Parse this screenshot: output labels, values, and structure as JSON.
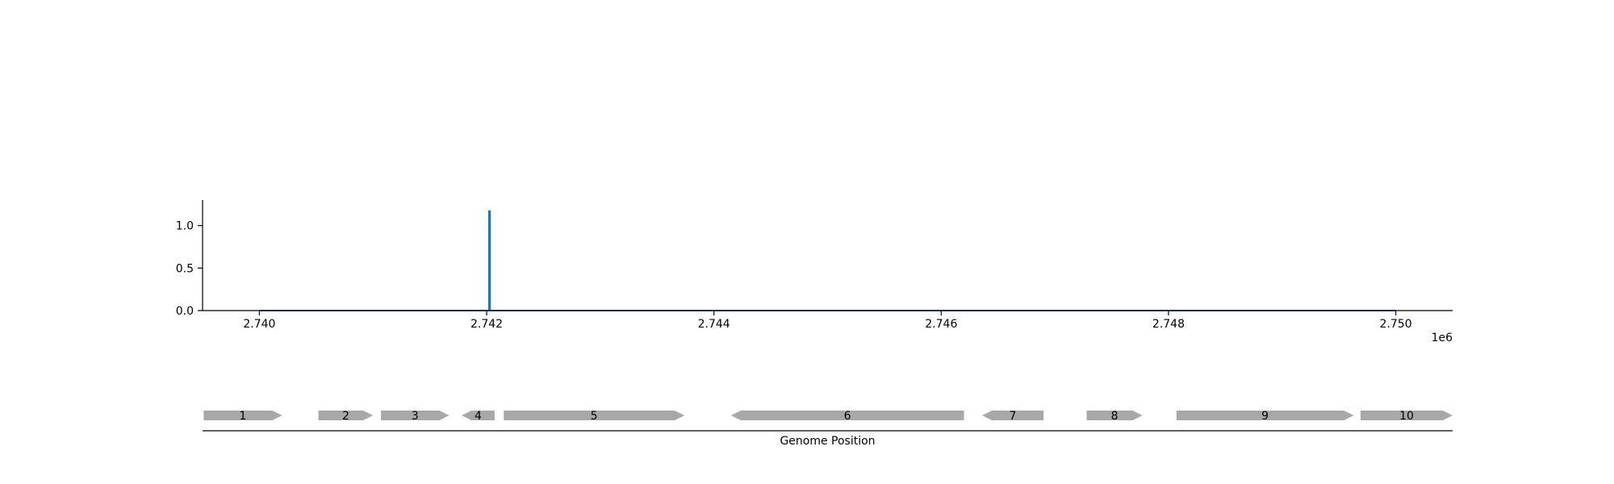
{
  "chart_data": [
    {
      "type": "line",
      "title": "",
      "xlabel": "",
      "ylabel": "",
      "x_offset_label": "1e6",
      "xlim": [
        2.7395,
        2.7505
      ],
      "ylim": [
        0.0,
        1.3
      ],
      "x_ticks": [
        2.74,
        2.742,
        2.744,
        2.746,
        2.748,
        2.75
      ],
      "x_tick_labels": [
        "2.740",
        "2.742",
        "2.744",
        "2.746",
        "2.748",
        "2.750"
      ],
      "y_ticks": [
        0.0,
        0.5,
        1.0
      ],
      "y_tick_labels": [
        "0.0",
        "0.5",
        "1.0"
      ],
      "series": [
        {
          "color": "#1f77b4",
          "x": [
            2.74,
            2.74202,
            2.74202,
            2.74203,
            2.74203,
            2.75
          ],
          "values": [
            0.0,
            0.0,
            1.17,
            1.17,
            0.0,
            0.0
          ]
        }
      ],
      "grid": false
    },
    {
      "type": "gene-track",
      "xlabel": "Genome Position",
      "xlim": [
        2.7395,
        2.7505
      ],
      "gene_color": "#a8a8a8",
      "genes": [
        {
          "label": "1",
          "start": 2.73951,
          "end": 2.7402,
          "strand": "+"
        },
        {
          "label": "2",
          "start": 2.74052,
          "end": 2.741,
          "strand": "+"
        },
        {
          "label": "3",
          "start": 2.74107,
          "end": 2.74167,
          "strand": "+"
        },
        {
          "label": "4",
          "start": 2.74178,
          "end": 2.74207,
          "strand": "-"
        },
        {
          "label": "5",
          "start": 2.74215,
          "end": 2.74374,
          "strand": "+"
        },
        {
          "label": "6",
          "start": 2.74415,
          "end": 2.7462,
          "strand": "-"
        },
        {
          "label": "7",
          "start": 2.74636,
          "end": 2.7469,
          "strand": "-"
        },
        {
          "label": "8",
          "start": 2.74728,
          "end": 2.74777,
          "strand": "+"
        },
        {
          "label": "9",
          "start": 2.74807,
          "end": 2.74963,
          "strand": "+"
        },
        {
          "label": "10",
          "start": 2.74969,
          "end": 2.7505,
          "strand": "+"
        }
      ]
    }
  ]
}
